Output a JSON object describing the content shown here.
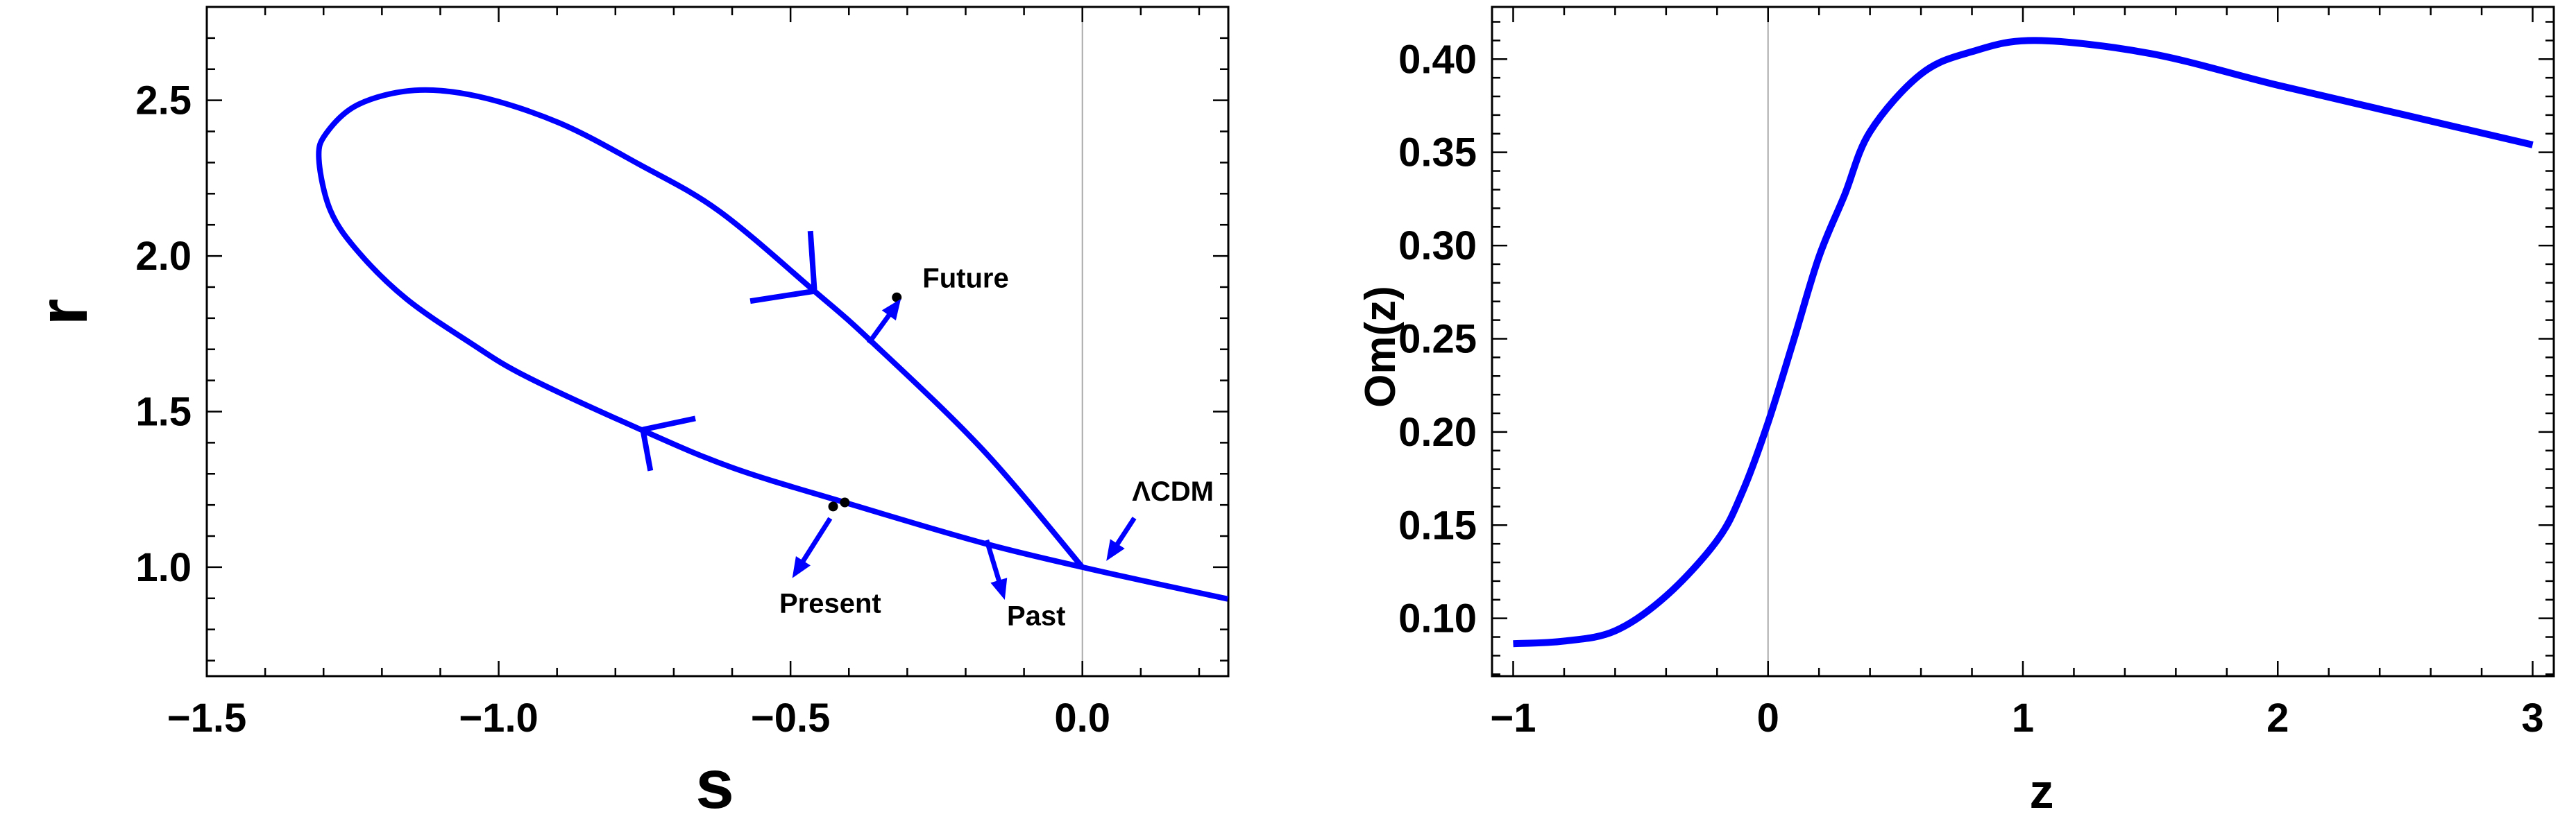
{
  "chart_data": [
    {
      "type": "line",
      "xlabel": "s",
      "ylabel": "r",
      "xlim": [
        -1.5,
        0.25
      ],
      "ylim": [
        0.65,
        2.8
      ],
      "x_ticks": [
        "-1.5",
        "-1.0",
        "-0.5",
        "0.0"
      ],
      "y_ticks": [
        "1.0",
        "1.5",
        "2.0",
        "2.5"
      ],
      "x_tick_values": [
        -1.5,
        -1.0,
        -0.5,
        0.0
      ],
      "y_tick_values": [
        1.0,
        1.5,
        2.0,
        2.5
      ],
      "grid": false,
      "reference_line_x": 0,
      "color": "#0000ff",
      "series": [
        {
          "x": [
            0.249,
            0.12,
            0.0,
            -0.171,
            -0.407,
            -0.6,
            -0.76,
            -0.952,
            -1.048,
            -1.158,
            -1.24,
            -1.288,
            -1.308,
            -1.295,
            -1.24,
            -1.144,
            -1.034,
            -0.897,
            -0.76,
            -0.623,
            -0.459,
            -0.363,
            -0.171,
            0.0
          ],
          "y": [
            0.898,
            0.95,
            1.0,
            1.078,
            1.208,
            1.32,
            1.445,
            1.612,
            1.72,
            1.862,
            2.012,
            2.145,
            2.312,
            2.395,
            2.487,
            2.532,
            2.512,
            2.428,
            2.295,
            2.145,
            1.887,
            1.728,
            1.378,
            1.0
          ]
        }
      ],
      "direction_markers": [
        {
          "at": [
            -0.459,
            1.887
          ],
          "ends": [
            [
              -0.466,
              2.08
            ],
            [
              -0.569,
              1.855
            ]
          ]
        },
        {
          "at": [
            -0.753,
            1.442
          ],
          "ends": [
            [
              -0.663,
              1.478
            ],
            [
              -0.74,
              1.31
            ]
          ]
        }
      ],
      "points": [
        [
          -0.427,
          1.195
        ],
        [
          -0.407,
          1.208
        ],
        [
          -0.318,
          1.867
        ]
      ],
      "annotations": [
        {
          "text": "Future",
          "pos": [
            -0.2,
            1.93
          ],
          "arrow_from": [
            -0.366,
            1.72
          ],
          "arrow_to": [
            -0.311,
            1.862
          ]
        },
        {
          "text": "Present",
          "pos": [
            -0.432,
            0.885
          ],
          "arrow_from": [
            -0.432,
            1.157
          ],
          "arrow_to": [
            -0.497,
            0.965
          ]
        },
        {
          "text": "Past",
          "pos": [
            -0.079,
            0.845
          ],
          "arrow_from": [
            -0.164,
            1.087
          ],
          "arrow_to": [
            -0.133,
            0.895
          ]
        },
        {
          "text": "ΛCDM",
          "pos": [
            0.155,
            1.245
          ],
          "arrow_from": [
            0.089,
            1.158
          ],
          "arrow_to": [
            0.041,
            1.02
          ]
        }
      ]
    },
    {
      "type": "line",
      "xlabel": "z",
      "ylabel": "Om(z)",
      "xlim": [
        -1.083,
        3.083
      ],
      "ylim": [
        0.069,
        0.428
      ],
      "x_ticks": [
        "-1",
        "0",
        "1",
        "2",
        "3"
      ],
      "y_ticks": [
        "0.10",
        "0.15",
        "0.20",
        "0.25",
        "0.30",
        "0.35",
        "0.40"
      ],
      "x_tick_values": [
        -1,
        0,
        1,
        2,
        3
      ],
      "y_tick_values": [
        0.1,
        0.15,
        0.2,
        0.25,
        0.3,
        0.35,
        0.4
      ],
      "grid": false,
      "reference_line_x": 0,
      "color": "#0000ff",
      "series": [
        {
          "x": [
            -1,
            -0.8,
            -0.6,
            -0.4,
            -0.2,
            -0.1,
            0,
            0.1,
            0.2,
            0.3,
            0.4,
            0.6,
            0.8,
            1.05,
            1.5,
            2,
            2.5,
            3
          ],
          "y": [
            0.0864,
            0.0878,
            0.0933,
            0.112,
            0.1418,
            0.168,
            0.205,
            0.249,
            0.294,
            0.327,
            0.361,
            0.392,
            0.404,
            0.41,
            0.403,
            0.386,
            0.37,
            0.354
          ]
        }
      ]
    }
  ]
}
